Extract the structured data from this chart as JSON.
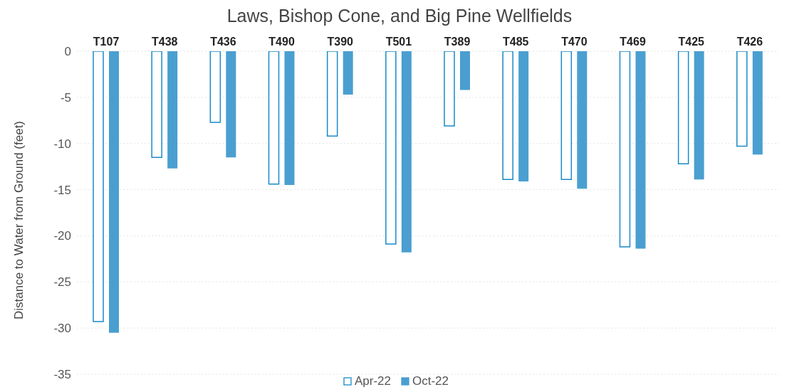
{
  "chart_data": {
    "type": "bar",
    "title": "Laws, Bishop Cone, and Big Pine Wellfields",
    "ylabel": "Distance to Water from Ground (feet)",
    "categories": [
      "T107",
      "T438",
      "T436",
      "T490",
      "T390",
      "T501",
      "T389",
      "T485",
      "T470",
      "T469",
      "T425",
      "T426"
    ],
    "series": [
      {
        "name": "Apr-22",
        "color": "#1a8ac8",
        "values": [
          -29.3,
          -11.5,
          -7.7,
          -14.4,
          -9.2,
          -20.9,
          -8.1,
          -13.9,
          -13.9,
          -21.2,
          -12.2,
          -10.3
        ]
      },
      {
        "name": "Oct-22",
        "color": "#4a9fd0",
        "values": [
          -30.5,
          -12.7,
          -11.5,
          -14.5,
          -4.7,
          -21.8,
          -4.2,
          -14.1,
          -14.9,
          -21.4,
          -13.9,
          -11.2
        ]
      }
    ],
    "ylim": [
      -35,
      0
    ],
    "yticks": [
      -35,
      -30,
      -25,
      -20,
      -15,
      -10,
      -5,
      0
    ],
    "grid": "y",
    "legend": "bottom"
  }
}
